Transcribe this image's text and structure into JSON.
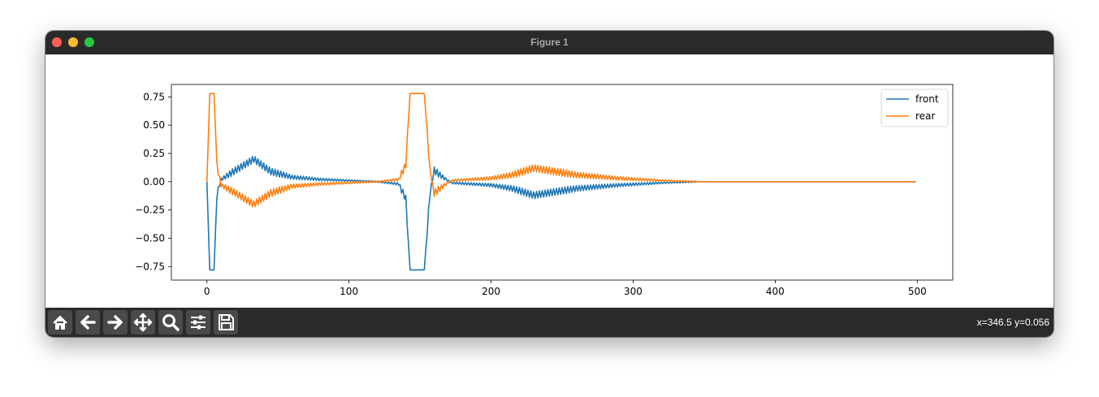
{
  "window": {
    "title": "Figure 1"
  },
  "toolbar": {
    "buttons": [
      {
        "name": "home-icon"
      },
      {
        "name": "back-icon"
      },
      {
        "name": "forward-icon"
      },
      {
        "name": "pan-icon"
      },
      {
        "name": "zoom-icon"
      },
      {
        "name": "configure-subplots-icon"
      },
      {
        "name": "save-icon"
      }
    ],
    "coords": "x=346.5 y=0.056"
  },
  "chart_data": {
    "type": "line",
    "title": "",
    "xlabel": "",
    "ylabel": "",
    "xlim": [
      -25,
      525
    ],
    "ylim": [
      -0.87,
      0.86
    ],
    "xticks": [
      0,
      100,
      200,
      300,
      400,
      500
    ],
    "yticks": [
      -0.75,
      -0.5,
      -0.25,
      0.0,
      0.25,
      0.5,
      0.75
    ],
    "ytick_labels": [
      "−0.75",
      "−0.50",
      "−0.25",
      "0.00",
      "0.25",
      "0.50",
      "0.75"
    ],
    "grid": false,
    "legend_position": "top-right",
    "x_range": [
      0,
      499
    ],
    "series": [
      {
        "name": "front",
        "color": "#1f77b4",
        "description_points": [
          [
            0,
            0.0
          ],
          [
            2,
            -0.78
          ],
          [
            5,
            -0.78
          ],
          [
            7,
            -0.12
          ],
          [
            10,
            0.02
          ],
          [
            20,
            0.1
          ],
          [
            33,
            0.2
          ],
          [
            45,
            0.09
          ],
          [
            60,
            0.04
          ],
          [
            80,
            0.02
          ],
          [
            100,
            0.01
          ],
          [
            120,
            0.0
          ],
          [
            135,
            -0.02
          ],
          [
            140,
            -0.15
          ],
          [
            143,
            -0.78
          ],
          [
            153,
            -0.78
          ],
          [
            157,
            -0.1
          ],
          [
            160,
            0.1
          ],
          [
            165,
            0.05
          ],
          [
            172,
            -0.01
          ],
          [
            200,
            -0.03
          ],
          [
            215,
            -0.06
          ],
          [
            230,
            -0.12
          ],
          [
            240,
            -0.1
          ],
          [
            260,
            -0.06
          ],
          [
            290,
            -0.03
          ],
          [
            320,
            -0.01
          ],
          [
            345,
            0.0
          ],
          [
            499,
            0.0
          ]
        ]
      },
      {
        "name": "rear",
        "color": "#ff7f0e",
        "description_points": [
          [
            0,
            0.0
          ],
          [
            2,
            0.78
          ],
          [
            5,
            0.78
          ],
          [
            7,
            0.15
          ],
          [
            10,
            -0.03
          ],
          [
            20,
            -0.1
          ],
          [
            33,
            -0.2
          ],
          [
            45,
            -0.1
          ],
          [
            60,
            -0.04
          ],
          [
            80,
            -0.02
          ],
          [
            100,
            -0.01
          ],
          [
            120,
            0.0
          ],
          [
            135,
            0.02
          ],
          [
            140,
            0.15
          ],
          [
            143,
            0.78
          ],
          [
            153,
            0.78
          ],
          [
            157,
            0.1
          ],
          [
            160,
            -0.1
          ],
          [
            165,
            -0.05
          ],
          [
            172,
            0.01
          ],
          [
            200,
            0.03
          ],
          [
            215,
            0.06
          ],
          [
            230,
            0.12
          ],
          [
            240,
            0.1
          ],
          [
            260,
            0.06
          ],
          [
            290,
            0.03
          ],
          [
            320,
            0.01
          ],
          [
            345,
            0.0
          ],
          [
            499,
            0.0
          ]
        ]
      }
    ]
  }
}
